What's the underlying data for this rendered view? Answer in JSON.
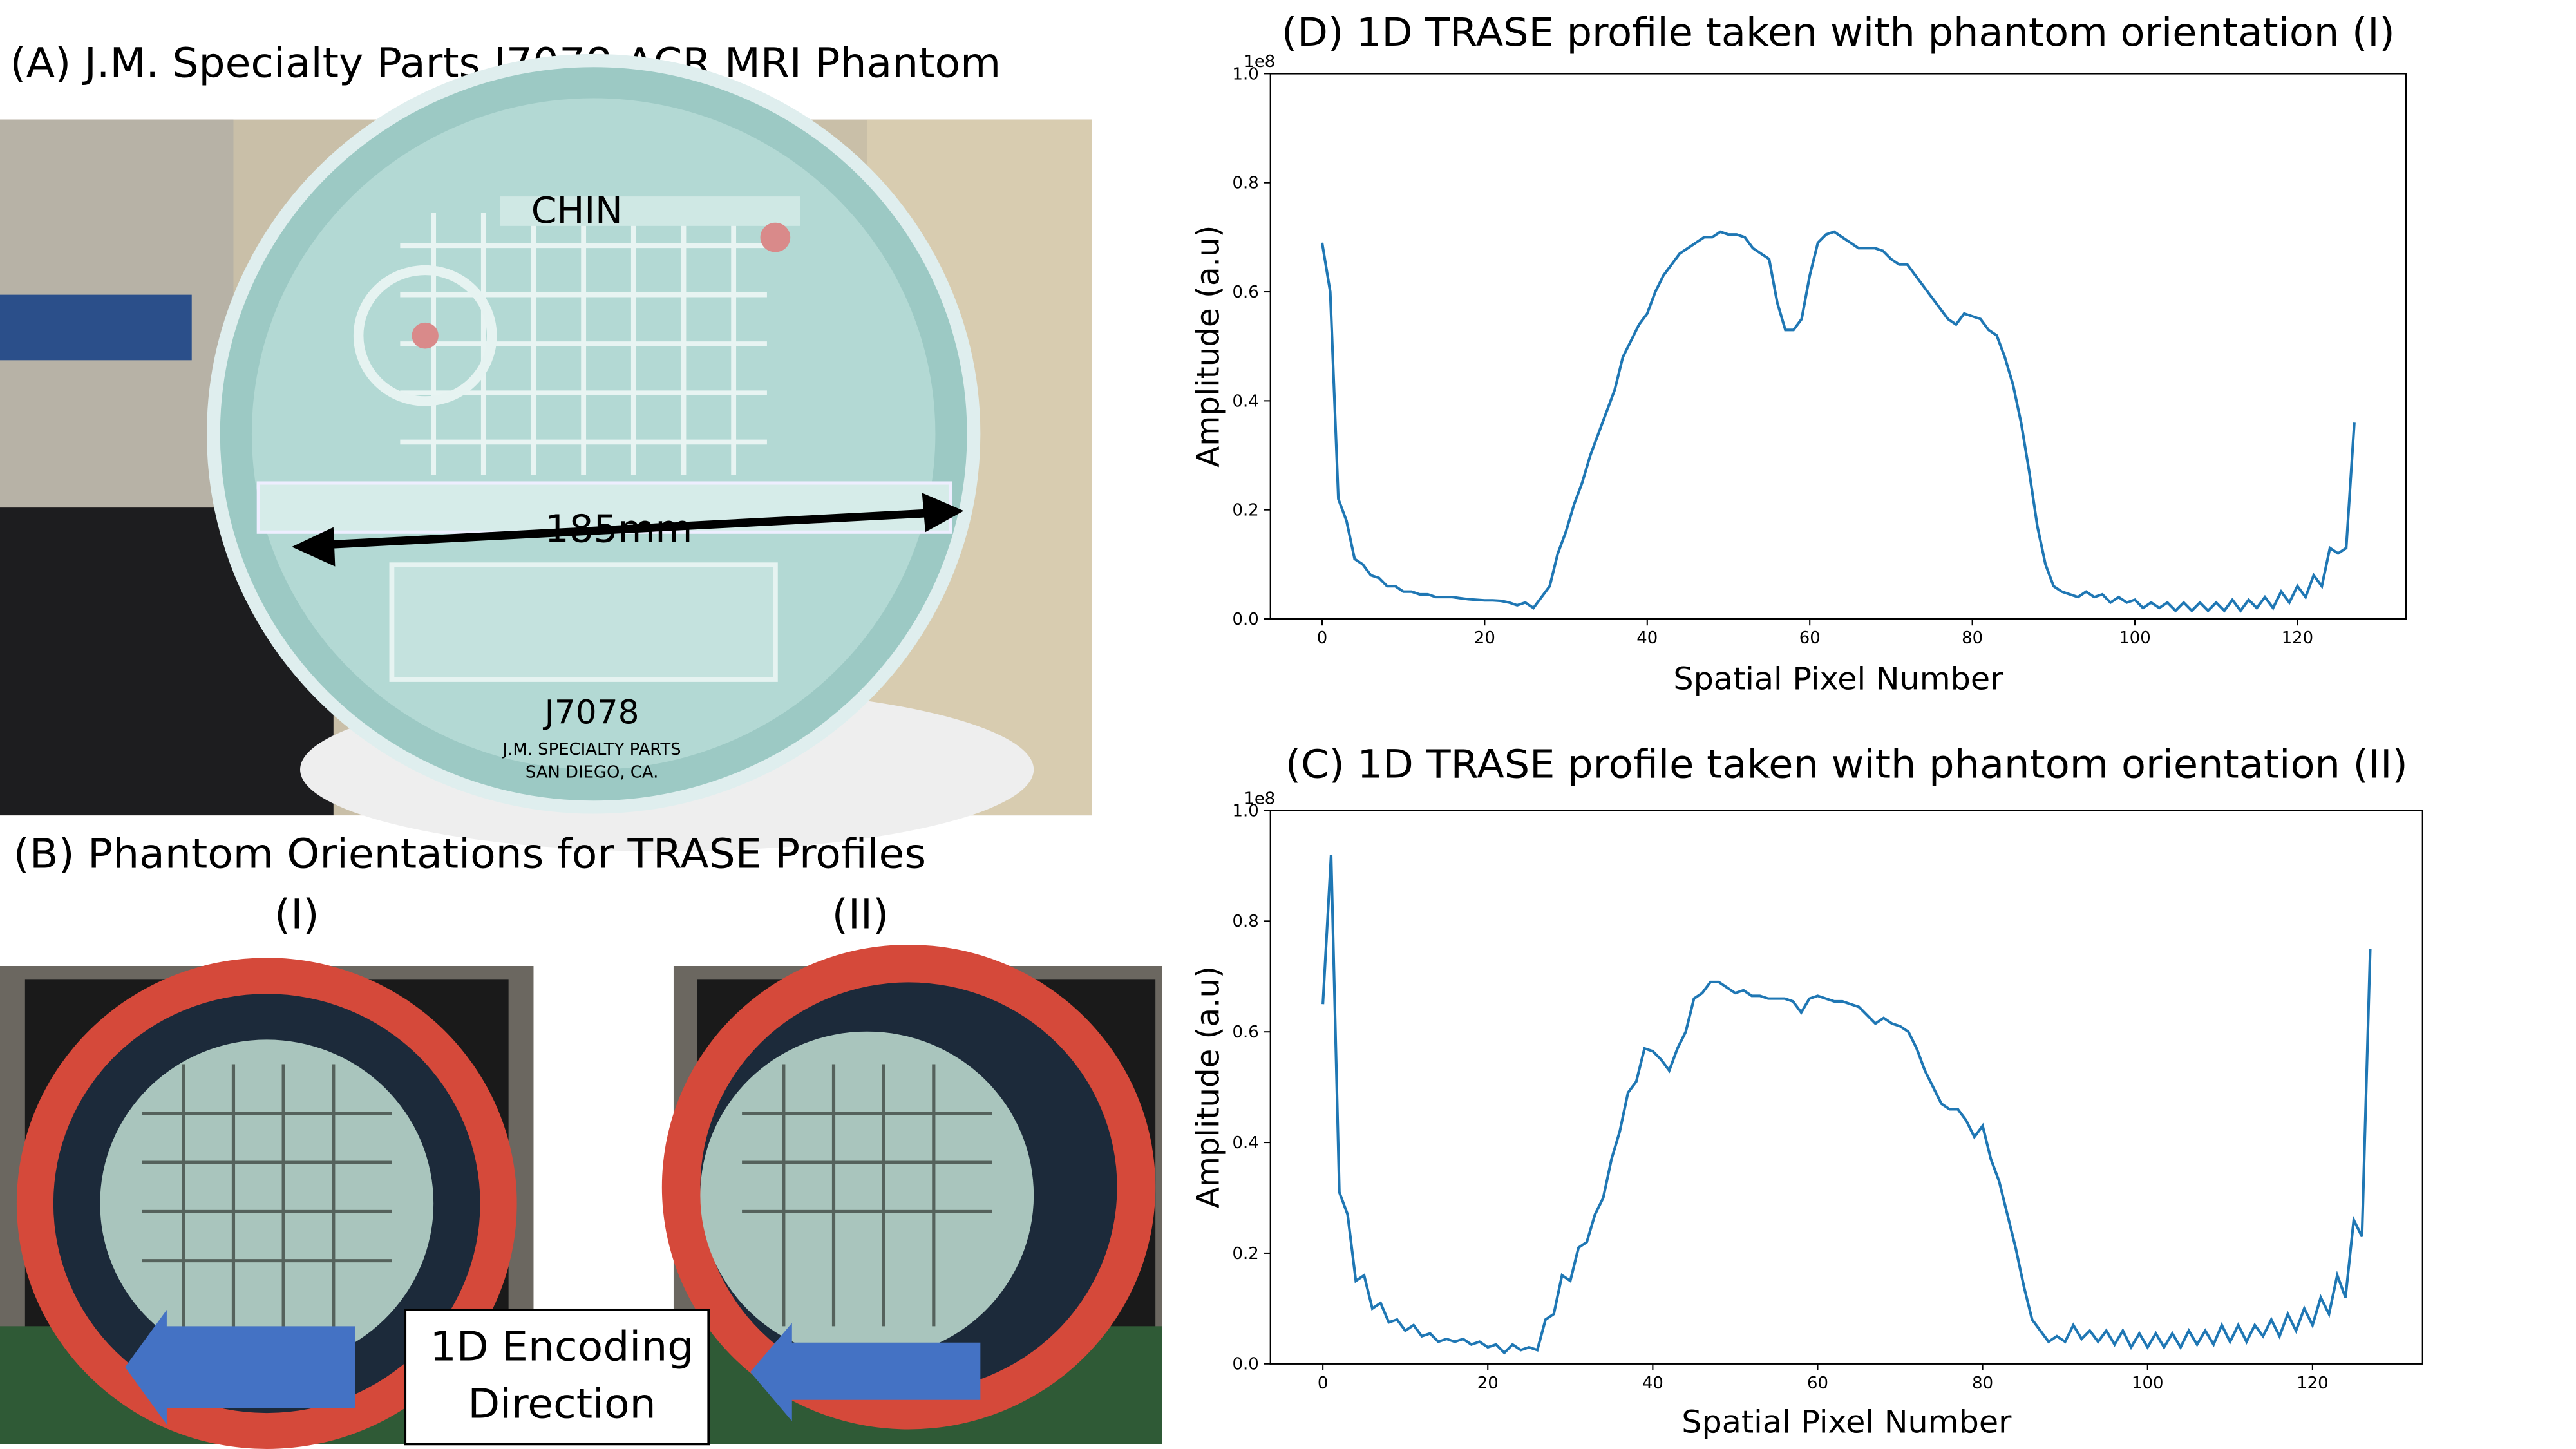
{
  "panel_a": {
    "title": "(A) J.M. Specialty Parts J7078 ACR MRI Phantom",
    "photo_texts": [
      "CHIN",
      "J7078",
      "J.M. SPECIALTY PARTS",
      "SAN DIEGO, CA."
    ],
    "dimension": "185mm"
  },
  "panel_b": {
    "title": "(B) Phantom Orientations for TRASE Profiles",
    "orientations": [
      "(I)",
      "(II)"
    ],
    "arrow_label": [
      "1D Encoding",
      "Direction"
    ]
  },
  "chart_data": [
    {
      "type": "line",
      "title": "(D) 1D TRASE profile taken with phantom orientation (I)",
      "x_label": "Spatial Pixel Number",
      "y_label": "Amplitude (a.u)",
      "y_offset_label": "1e8",
      "x": [
        0,
        1,
        2,
        3,
        4,
        5,
        6,
        7,
        8,
        9,
        10,
        11,
        12,
        13,
        14,
        15,
        16,
        17,
        18,
        19,
        20,
        21,
        22,
        23,
        24,
        25,
        26,
        27,
        28,
        29,
        30,
        31,
        32,
        33,
        34,
        35,
        36,
        37,
        38,
        39,
        40,
        41,
        42,
        43,
        44,
        45,
        46,
        47,
        48,
        49,
        50,
        51,
        52,
        53,
        54,
        55,
        56,
        57,
        58,
        59,
        60,
        61,
        62,
        63,
        64,
        65,
        66,
        67,
        68,
        69,
        70,
        71,
        72,
        73,
        74,
        75,
        76,
        77,
        78,
        79,
        80,
        81,
        82,
        83,
        84,
        85,
        86,
        87,
        88,
        89,
        90,
        91,
        92,
        93,
        94,
        95,
        96,
        97,
        98,
        99,
        100,
        101,
        102,
        103,
        104,
        105,
        106,
        107,
        108,
        109,
        110,
        111,
        112,
        113,
        114,
        115,
        116,
        117,
        118,
        119,
        120,
        121,
        122,
        123,
        124,
        125,
        126,
        127
      ],
      "series": [
        {
          "color": "#1f77b4",
          "values": [
            0.69,
            0.6,
            0.22,
            0.18,
            0.11,
            0.1,
            0.08,
            0.075,
            0.06,
            0.06,
            0.05,
            0.05,
            0.045,
            0.045,
            0.04,
            0.04,
            0.04,
            0.038,
            0.036,
            0.035,
            0.034,
            0.034,
            0.033,
            0.03,
            0.025,
            0.03,
            0.02,
            0.04,
            0.06,
            0.12,
            0.16,
            0.21,
            0.25,
            0.3,
            0.34,
            0.38,
            0.42,
            0.48,
            0.51,
            0.54,
            0.56,
            0.6,
            0.63,
            0.65,
            0.67,
            0.68,
            0.69,
            0.7,
            0.7,
            0.71,
            0.705,
            0.705,
            0.7,
            0.68,
            0.67,
            0.66,
            0.58,
            0.53,
            0.53,
            0.55,
            0.63,
            0.69,
            0.705,
            0.71,
            0.7,
            0.69,
            0.68,
            0.68,
            0.68,
            0.675,
            0.66,
            0.65,
            0.65,
            0.63,
            0.61,
            0.59,
            0.57,
            0.55,
            0.54,
            0.56,
            0.555,
            0.55,
            0.53,
            0.52,
            0.48,
            0.43,
            0.36,
            0.27,
            0.17,
            0.1,
            0.06,
            0.05,
            0.045,
            0.04,
            0.05,
            0.04,
            0.045,
            0.03,
            0.04,
            0.03,
            0.035,
            0.02,
            0.03,
            0.02,
            0.03,
            0.015,
            0.03,
            0.015,
            0.03,
            0.015,
            0.03,
            0.015,
            0.035,
            0.015,
            0.035,
            0.02,
            0.04,
            0.02,
            0.05,
            0.03,
            0.06,
            0.04,
            0.08,
            0.06,
            0.13,
            0.12,
            0.13,
            0.36
          ]
        }
      ],
      "xlim": [
        -6.35,
        133.35
      ],
      "xticks": [
        0,
        20,
        40,
        60,
        80,
        100,
        120
      ],
      "ylim": [
        0,
        1
      ],
      "yticks": [
        {
          "value": 0,
          "label": "0.0"
        },
        0.2,
        0.4,
        0.6,
        0.8,
        {
          "value": 1,
          "label": "1.0"
        }
      ]
    },
    {
      "type": "line",
      "title": "(C) 1D TRASE profile taken with phantom orientation (II)",
      "x_label": "Spatial Pixel Number",
      "y_label": "Amplitude (a.u)",
      "y_offset_label": "1e8",
      "x": [
        0,
        1,
        2,
        3,
        4,
        5,
        6,
        7,
        8,
        9,
        10,
        11,
        12,
        13,
        14,
        15,
        16,
        17,
        18,
        19,
        20,
        21,
        22,
        23,
        24,
        25,
        26,
        27,
        28,
        29,
        30,
        31,
        32,
        33,
        34,
        35,
        36,
        37,
        38,
        39,
        40,
        41,
        42,
        43,
        44,
        45,
        46,
        47,
        48,
        49,
        50,
        51,
        52,
        53,
        54,
        55,
        56,
        57,
        58,
        59,
        60,
        61,
        62,
        63,
        64,
        65,
        66,
        67,
        68,
        69,
        70,
        71,
        72,
        73,
        74,
        75,
        76,
        77,
        78,
        79,
        80,
        81,
        82,
        83,
        84,
        85,
        86,
        87,
        88,
        89,
        90,
        91,
        92,
        93,
        94,
        95,
        96,
        97,
        98,
        99,
        100,
        101,
        102,
        103,
        104,
        105,
        106,
        107,
        108,
        109,
        110,
        111,
        112,
        113,
        114,
        115,
        116,
        117,
        118,
        119,
        120,
        121,
        122,
        123,
        124,
        125,
        126,
        127
      ],
      "series": [
        {
          "color": "#1f77b4",
          "values": [
            0.65,
            0.92,
            0.31,
            0.27,
            0.15,
            0.16,
            0.1,
            0.11,
            0.075,
            0.08,
            0.06,
            0.07,
            0.05,
            0.055,
            0.04,
            0.045,
            0.04,
            0.045,
            0.035,
            0.04,
            0.03,
            0.035,
            0.02,
            0.035,
            0.025,
            0.03,
            0.025,
            0.08,
            0.09,
            0.16,
            0.15,
            0.21,
            0.22,
            0.27,
            0.3,
            0.37,
            0.42,
            0.49,
            0.51,
            0.57,
            0.565,
            0.55,
            0.53,
            0.57,
            0.6,
            0.66,
            0.67,
            0.69,
            0.69,
            0.68,
            0.67,
            0.675,
            0.665,
            0.665,
            0.66,
            0.66,
            0.66,
            0.655,
            0.635,
            0.66,
            0.665,
            0.66,
            0.655,
            0.655,
            0.65,
            0.645,
            0.63,
            0.615,
            0.625,
            0.615,
            0.61,
            0.6,
            0.57,
            0.53,
            0.5,
            0.47,
            0.46,
            0.46,
            0.44,
            0.41,
            0.43,
            0.37,
            0.33,
            0.27,
            0.21,
            0.14,
            0.08,
            0.06,
            0.04,
            0.05,
            0.04,
            0.07,
            0.045,
            0.06,
            0.04,
            0.06,
            0.035,
            0.06,
            0.03,
            0.055,
            0.03,
            0.055,
            0.03,
            0.055,
            0.03,
            0.06,
            0.035,
            0.06,
            0.035,
            0.07,
            0.04,
            0.07,
            0.04,
            0.07,
            0.05,
            0.08,
            0.05,
            0.09,
            0.06,
            0.1,
            0.07,
            0.12,
            0.09,
            0.16,
            0.12,
            0.26,
            0.23,
            0.75
          ]
        }
      ],
      "xlim": [
        -6.35,
        133.35
      ],
      "xticks": [
        0,
        20,
        40,
        60,
        80,
        100,
        120
      ],
      "ylim": [
        0,
        1
      ],
      "yticks": [
        {
          "value": 0,
          "label": "0.0"
        },
        0.2,
        0.4,
        0.6,
        0.8,
        {
          "value": 1,
          "label": "1.0"
        }
      ]
    }
  ]
}
